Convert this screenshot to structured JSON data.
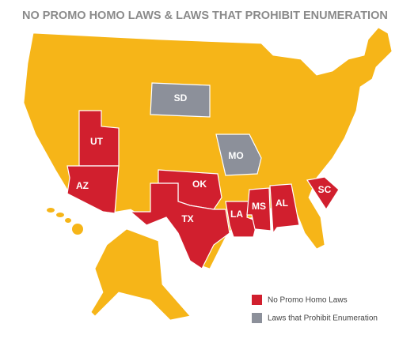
{
  "title": "NO PROMO HOMO LAWS & LAWS THAT PROHIBIT ENUMERATION",
  "base_color": "#f6b518",
  "legend": [
    {
      "label": "No Promo Homo Laws",
      "color": "#d11f2e",
      "states": [
        "UT",
        "AZ",
        "OK",
        "TX",
        "LA",
        "MS",
        "AL",
        "SC"
      ]
    },
    {
      "label": "Laws that Prohibit Enumeration",
      "color": "#8c909a",
      "states": [
        "SD",
        "MO"
      ]
    }
  ]
}
